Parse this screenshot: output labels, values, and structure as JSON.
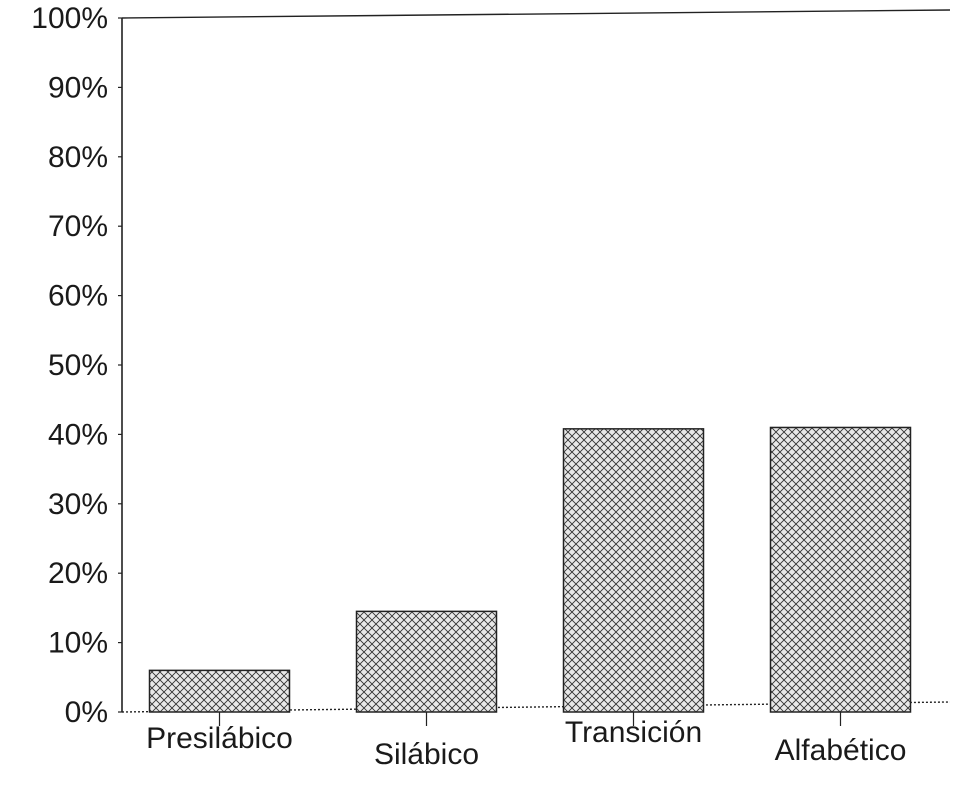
{
  "chart_data": {
    "type": "bar",
    "categories": [
      "Presilábico",
      "Silábico",
      "Transición",
      "Alfabético"
    ],
    "values": [
      6,
      14.5,
      40.8,
      41
    ],
    "ylim": [
      0,
      100
    ],
    "yticks": [
      "0%",
      "10%",
      "20%",
      "30%",
      "40%",
      "50%",
      "60%",
      "70%",
      "80%",
      "90%",
      "100%"
    ],
    "grid": false,
    "legend": "none",
    "bar_pattern": "crosshatch",
    "colors": {
      "bar_fill": "#e8e8e8",
      "hatch": "#333333",
      "axis": "#222222"
    }
  }
}
